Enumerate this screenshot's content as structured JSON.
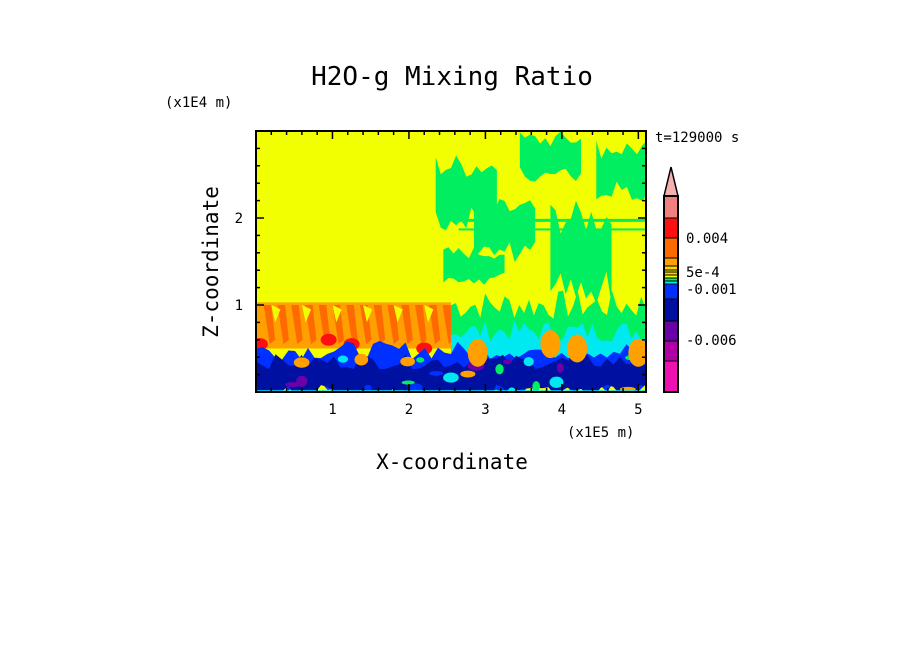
{
  "chart_data": {
    "type": "heatmap",
    "title": "H2O-g Mixing Ratio",
    "xlabel": "X-coordinate",
    "ylabel": "Z-coordinate",
    "x_scale_label": "(x1E5 m)",
    "y_scale_label": "(x1E4 m)",
    "time_label": "t=129000 s",
    "xlim": [
      0,
      5.1
    ],
    "ylim": [
      0,
      3.0
    ],
    "x_ticks": [
      1,
      2,
      3,
      4,
      5
    ],
    "x_tick_labels": [
      "1",
      "2",
      "3",
      "4",
      "5"
    ],
    "y_ticks": [
      1,
      2
    ],
    "y_tick_labels": [
      "1",
      "2"
    ],
    "colorbar": {
      "colors": [
        "#f08080",
        "#ff1010",
        "#ff6a00",
        "#ffa000",
        "#ffd000",
        "#f2ff00",
        "#00ee60",
        "#00e8f0",
        "#0030ff",
        "#0010a0",
        "#6a00a8",
        "#b000a8",
        "#ee10b0"
      ],
      "extend_top_color": "#f5b0b0",
      "labels": [
        {
          "text": "0.004",
          "value": 0.004
        },
        {
          "text": "5e-4",
          "value": 0.0005
        },
        {
          "text": "-0.001",
          "value": -0.001
        },
        {
          "text": "-0.006",
          "value": -0.006
        }
      ]
    },
    "regions": [
      {
        "description_value": "upper domain x<2.55",
        "level_color": "#f2ff00"
      },
      {
        "description_value": "left mid layer z 0.5-1.03",
        "level_color": "#ff6a00"
      },
      {
        "description_value": "lower layer z<0.5",
        "level_color": "#0010a0"
      },
      {
        "description_value": "right upper patches",
        "level_color": "#00ee60"
      }
    ]
  }
}
